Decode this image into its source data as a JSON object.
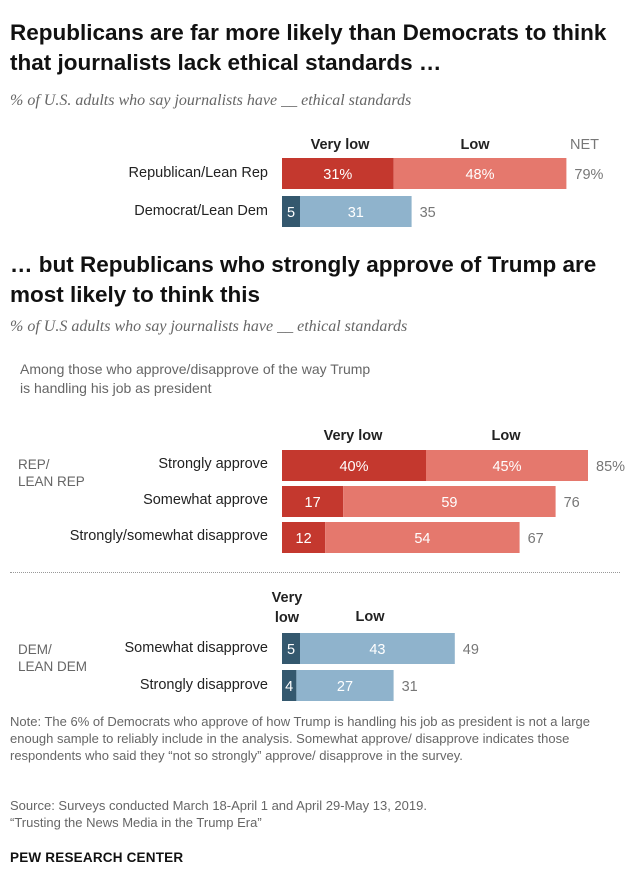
{
  "colors": {
    "rep_very_low": "#c4382e",
    "rep_low": "#e5786d",
    "dem_very_low": "#34586e",
    "dem_low": "#8fb3cc"
  },
  "top": {
    "title": "Republicans are far more likely than Democrats to think that journalists lack ethical standards …",
    "subtitle": "% of U.S. adults who say journalists have __ ethical standards",
    "col_very_low": "Very low",
    "col_low": "Low",
    "col_net": "NET"
  },
  "bottom": {
    "title": "… but Republicans who strongly approve of Trump are most likely to think this",
    "subtitle": "% of U.S adults who say journalists have __ ethical standards",
    "group_note": "Among those who approve/disapprove of the way Trump is handling his job as president",
    "rep_group_label": "REP/ LEAN REP",
    "dem_group_label": "DEM/ LEAN DEM",
    "col_very_low": "Very low",
    "col_low": "Low"
  },
  "chart_data": [
    {
      "type": "bar",
      "stacked": true,
      "orientation": "horizontal",
      "categories": [
        "Republican/Lean Rep",
        "Democrat/Lean Dem"
      ],
      "series": [
        {
          "name": "Very low",
          "values": [
            31,
            5
          ]
        },
        {
          "name": "Low",
          "values": [
            48,
            31
          ]
        }
      ],
      "net": [
        79,
        35
      ],
      "value_labels": {
        "very_low": [
          "31%",
          "5"
        ],
        "low": [
          "48%",
          "31"
        ],
        "net": [
          "79%",
          "35"
        ]
      },
      "title": "Republicans are far more likely than Democrats to think that journalists lack ethical standards …"
    },
    {
      "type": "bar",
      "stacked": true,
      "orientation": "horizontal",
      "group": "REP/ LEAN REP",
      "categories": [
        "Strongly approve",
        "Somewhat approve",
        "Strongly/somewhat disapprove"
      ],
      "series": [
        {
          "name": "Very low",
          "values": [
            40,
            17,
            12
          ]
        },
        {
          "name": "Low",
          "values": [
            45,
            59,
            54
          ]
        }
      ],
      "net": [
        85,
        76,
        67
      ],
      "value_labels": {
        "very_low": [
          "40%",
          "17",
          "12"
        ],
        "low": [
          "45%",
          "59",
          "54"
        ],
        "net": [
          "85%",
          "76",
          "67"
        ]
      },
      "title": "… but Republicans who strongly approve of Trump are most likely to think this"
    },
    {
      "type": "bar",
      "stacked": true,
      "orientation": "horizontal",
      "group": "DEM/ LEAN DEM",
      "categories": [
        "Somewhat disapprove",
        "Strongly disapprove"
      ],
      "series": [
        {
          "name": "Very low",
          "values": [
            5,
            4
          ]
        },
        {
          "name": "Low",
          "values": [
            43,
            27
          ]
        }
      ],
      "net": [
        49,
        31
      ],
      "value_labels": {
        "very_low": [
          "5",
          "4"
        ],
        "low": [
          "43",
          "27"
        ],
        "net": [
          "49",
          "31"
        ]
      }
    }
  ],
  "footer": {
    "note": "Note: The 6% of Democrats who approve of how Trump is handling his job as president is not a large enough sample to reliably include in the analysis. Somewhat approve/ disapprove indicates those respondents who said they “not so strongly” approve/ disapprove in the survey.",
    "source": "Source: Surveys conducted March 18-April 1 and April 29-May 13, 2019.",
    "report": "“Trusting the News Media in the Trump Era”",
    "brand": "PEW RESEARCH CENTER"
  }
}
